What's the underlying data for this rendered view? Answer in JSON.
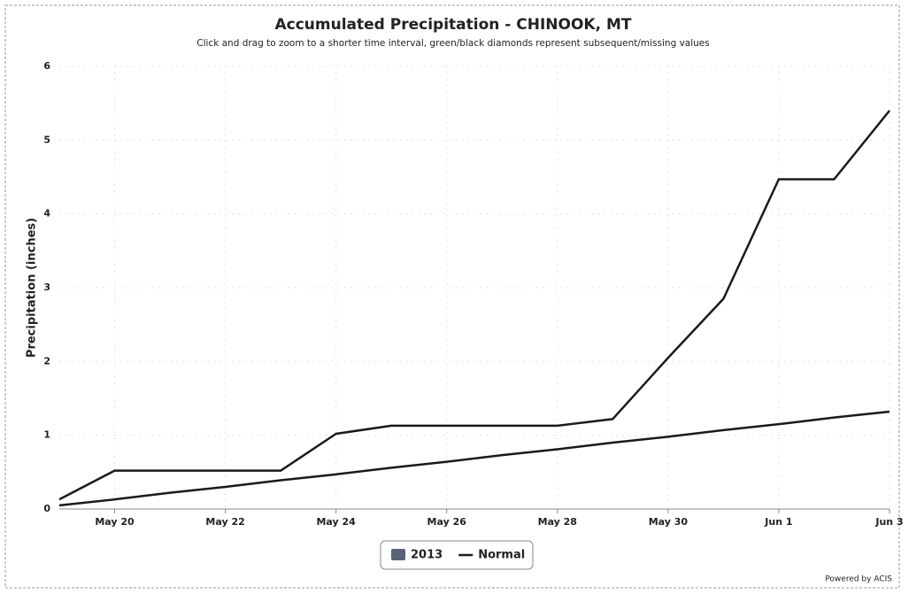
{
  "chart_data": {
    "type": "line",
    "title": "Accumulated Precipitation - CHINOOK, MT",
    "subtitle": "Click and drag to zoom to a shorter time interval, green/black diamonds represent subsequent/missing values",
    "y_label": "Precipitation (inches)",
    "categories": [
      null,
      "May 20",
      null,
      "May 22",
      null,
      "May 24",
      null,
      "May 26",
      null,
      "May 28",
      null,
      "May 30",
      null,
      "Jun 1",
      null,
      "Jun 3"
    ],
    "series": [
      {
        "name": "2013",
        "color": "#1a1a1a",
        "values": [
          0.13,
          0.52,
          0.52,
          0.52,
          0.52,
          1.02,
          1.13,
          1.13,
          1.13,
          1.13,
          1.22,
          2.05,
          2.85,
          4.47,
          4.47,
          5.4
        ]
      },
      {
        "name": "Normal",
        "color": "#1a1a1a",
        "values": [
          0.05,
          0.13,
          0.22,
          0.3,
          0.39,
          0.47,
          0.56,
          0.64,
          0.73,
          0.81,
          0.9,
          0.98,
          1.07,
          1.15,
          1.24,
          1.32
        ]
      }
    ],
    "ylim": [
      0,
      6
    ],
    "yticks": [
      0,
      1,
      2,
      3,
      4,
      5,
      6
    ],
    "grid": true,
    "legend": "bottom",
    "credit": "Powered by ACIS"
  }
}
